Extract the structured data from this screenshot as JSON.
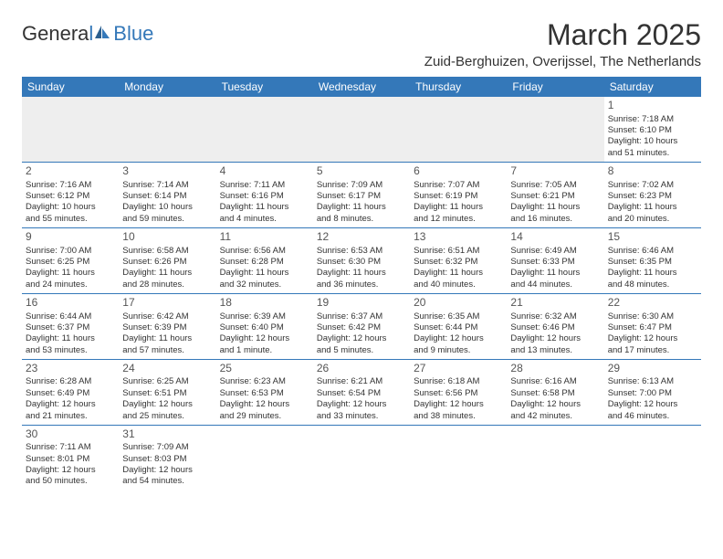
{
  "header": {
    "logo_general": "Genera",
    "logo_l": "l",
    "logo_blue": "Blue",
    "month_title": "March 2025",
    "location": "Zuid-Berghuizen, Overijssel, The Netherlands"
  },
  "colors": {
    "header_bg": "#3478b9",
    "text": "#333333"
  },
  "day_headers": [
    "Sunday",
    "Monday",
    "Tuesday",
    "Wednesday",
    "Thursday",
    "Friday",
    "Saturday"
  ],
  "weeks": [
    [
      null,
      null,
      null,
      null,
      null,
      null,
      {
        "day": "1",
        "sunrise": "Sunrise: 7:18 AM",
        "sunset": "Sunset: 6:10 PM",
        "daylight1": "Daylight: 10 hours",
        "daylight2": "and 51 minutes."
      }
    ],
    [
      {
        "day": "2",
        "sunrise": "Sunrise: 7:16 AM",
        "sunset": "Sunset: 6:12 PM",
        "daylight1": "Daylight: 10 hours",
        "daylight2": "and 55 minutes."
      },
      {
        "day": "3",
        "sunrise": "Sunrise: 7:14 AM",
        "sunset": "Sunset: 6:14 PM",
        "daylight1": "Daylight: 10 hours",
        "daylight2": "and 59 minutes."
      },
      {
        "day": "4",
        "sunrise": "Sunrise: 7:11 AM",
        "sunset": "Sunset: 6:16 PM",
        "daylight1": "Daylight: 11 hours",
        "daylight2": "and 4 minutes."
      },
      {
        "day": "5",
        "sunrise": "Sunrise: 7:09 AM",
        "sunset": "Sunset: 6:17 PM",
        "daylight1": "Daylight: 11 hours",
        "daylight2": "and 8 minutes."
      },
      {
        "day": "6",
        "sunrise": "Sunrise: 7:07 AM",
        "sunset": "Sunset: 6:19 PM",
        "daylight1": "Daylight: 11 hours",
        "daylight2": "and 12 minutes."
      },
      {
        "day": "7",
        "sunrise": "Sunrise: 7:05 AM",
        "sunset": "Sunset: 6:21 PM",
        "daylight1": "Daylight: 11 hours",
        "daylight2": "and 16 minutes."
      },
      {
        "day": "8",
        "sunrise": "Sunrise: 7:02 AM",
        "sunset": "Sunset: 6:23 PM",
        "daylight1": "Daylight: 11 hours",
        "daylight2": "and 20 minutes."
      }
    ],
    [
      {
        "day": "9",
        "sunrise": "Sunrise: 7:00 AM",
        "sunset": "Sunset: 6:25 PM",
        "daylight1": "Daylight: 11 hours",
        "daylight2": "and 24 minutes."
      },
      {
        "day": "10",
        "sunrise": "Sunrise: 6:58 AM",
        "sunset": "Sunset: 6:26 PM",
        "daylight1": "Daylight: 11 hours",
        "daylight2": "and 28 minutes."
      },
      {
        "day": "11",
        "sunrise": "Sunrise: 6:56 AM",
        "sunset": "Sunset: 6:28 PM",
        "daylight1": "Daylight: 11 hours",
        "daylight2": "and 32 minutes."
      },
      {
        "day": "12",
        "sunrise": "Sunrise: 6:53 AM",
        "sunset": "Sunset: 6:30 PM",
        "daylight1": "Daylight: 11 hours",
        "daylight2": "and 36 minutes."
      },
      {
        "day": "13",
        "sunrise": "Sunrise: 6:51 AM",
        "sunset": "Sunset: 6:32 PM",
        "daylight1": "Daylight: 11 hours",
        "daylight2": "and 40 minutes."
      },
      {
        "day": "14",
        "sunrise": "Sunrise: 6:49 AM",
        "sunset": "Sunset: 6:33 PM",
        "daylight1": "Daylight: 11 hours",
        "daylight2": "and 44 minutes."
      },
      {
        "day": "15",
        "sunrise": "Sunrise: 6:46 AM",
        "sunset": "Sunset: 6:35 PM",
        "daylight1": "Daylight: 11 hours",
        "daylight2": "and 48 minutes."
      }
    ],
    [
      {
        "day": "16",
        "sunrise": "Sunrise: 6:44 AM",
        "sunset": "Sunset: 6:37 PM",
        "daylight1": "Daylight: 11 hours",
        "daylight2": "and 53 minutes."
      },
      {
        "day": "17",
        "sunrise": "Sunrise: 6:42 AM",
        "sunset": "Sunset: 6:39 PM",
        "daylight1": "Daylight: 11 hours",
        "daylight2": "and 57 minutes."
      },
      {
        "day": "18",
        "sunrise": "Sunrise: 6:39 AM",
        "sunset": "Sunset: 6:40 PM",
        "daylight1": "Daylight: 12 hours",
        "daylight2": "and 1 minute."
      },
      {
        "day": "19",
        "sunrise": "Sunrise: 6:37 AM",
        "sunset": "Sunset: 6:42 PM",
        "daylight1": "Daylight: 12 hours",
        "daylight2": "and 5 minutes."
      },
      {
        "day": "20",
        "sunrise": "Sunrise: 6:35 AM",
        "sunset": "Sunset: 6:44 PM",
        "daylight1": "Daylight: 12 hours",
        "daylight2": "and 9 minutes."
      },
      {
        "day": "21",
        "sunrise": "Sunrise: 6:32 AM",
        "sunset": "Sunset: 6:46 PM",
        "daylight1": "Daylight: 12 hours",
        "daylight2": "and 13 minutes."
      },
      {
        "day": "22",
        "sunrise": "Sunrise: 6:30 AM",
        "sunset": "Sunset: 6:47 PM",
        "daylight1": "Daylight: 12 hours",
        "daylight2": "and 17 minutes."
      }
    ],
    [
      {
        "day": "23",
        "sunrise": "Sunrise: 6:28 AM",
        "sunset": "Sunset: 6:49 PM",
        "daylight1": "Daylight: 12 hours",
        "daylight2": "and 21 minutes."
      },
      {
        "day": "24",
        "sunrise": "Sunrise: 6:25 AM",
        "sunset": "Sunset: 6:51 PM",
        "daylight1": "Daylight: 12 hours",
        "daylight2": "and 25 minutes."
      },
      {
        "day": "25",
        "sunrise": "Sunrise: 6:23 AM",
        "sunset": "Sunset: 6:53 PM",
        "daylight1": "Daylight: 12 hours",
        "daylight2": "and 29 minutes."
      },
      {
        "day": "26",
        "sunrise": "Sunrise: 6:21 AM",
        "sunset": "Sunset: 6:54 PM",
        "daylight1": "Daylight: 12 hours",
        "daylight2": "and 33 minutes."
      },
      {
        "day": "27",
        "sunrise": "Sunrise: 6:18 AM",
        "sunset": "Sunset: 6:56 PM",
        "daylight1": "Daylight: 12 hours",
        "daylight2": "and 38 minutes."
      },
      {
        "day": "28",
        "sunrise": "Sunrise: 6:16 AM",
        "sunset": "Sunset: 6:58 PM",
        "daylight1": "Daylight: 12 hours",
        "daylight2": "and 42 minutes."
      },
      {
        "day": "29",
        "sunrise": "Sunrise: 6:13 AM",
        "sunset": "Sunset: 7:00 PM",
        "daylight1": "Daylight: 12 hours",
        "daylight2": "and 46 minutes."
      }
    ],
    [
      {
        "day": "30",
        "sunrise": "Sunrise: 7:11 AM",
        "sunset": "Sunset: 8:01 PM",
        "daylight1": "Daylight: 12 hours",
        "daylight2": "and 50 minutes."
      },
      {
        "day": "31",
        "sunrise": "Sunrise: 7:09 AM",
        "sunset": "Sunset: 8:03 PM",
        "daylight1": "Daylight: 12 hours",
        "daylight2": "and 54 minutes."
      },
      null,
      null,
      null,
      null,
      null
    ]
  ]
}
